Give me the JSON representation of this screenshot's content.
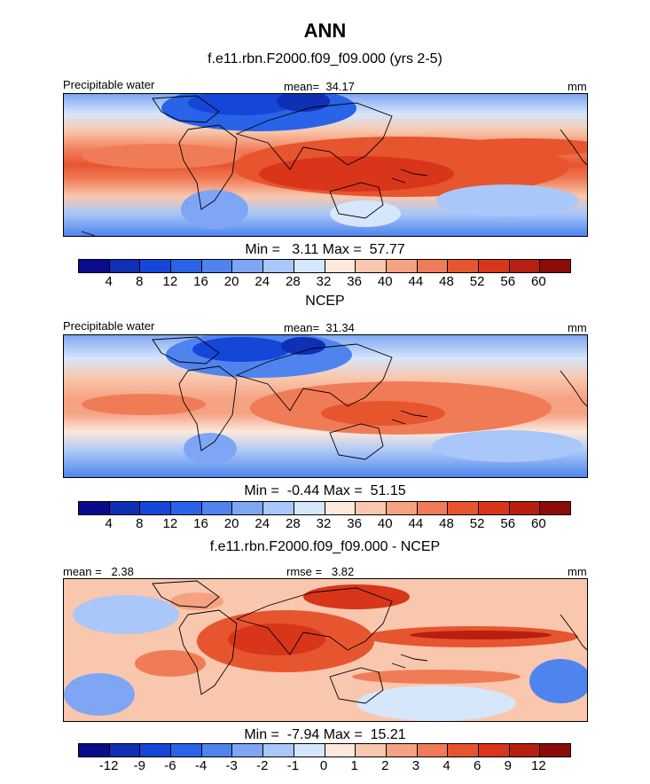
{
  "figure": {
    "title": "ANN",
    "subtitle": "f.e11.rbn.F2000.f09_f09.000 (yrs 2-5)"
  },
  "panels": [
    {
      "id": "model",
      "left_label": "Precipitable water",
      "center_label": "mean=  34.17",
      "units": "mm",
      "minmax": "Min =   3.11 Max =  57.77",
      "colorbar": {
        "colors": [
          "#0a0a8c",
          "#0f2fb4",
          "#1446d8",
          "#2863e8",
          "#4f84ee",
          "#7ea6f4",
          "#a9c7f8",
          "#d6e6fb",
          "#fde8dc",
          "#f9c7ad",
          "#f5a283",
          "#f07c57",
          "#e7552f",
          "#d8351b",
          "#b91f10",
          "#8b0c08"
        ],
        "ticks": [
          "4",
          "8",
          "12",
          "16",
          "20",
          "24",
          "28",
          "32",
          "36",
          "40",
          "44",
          "48",
          "52",
          "56",
          "60"
        ]
      }
    },
    {
      "id": "obs",
      "title": "NCEP",
      "left_label": "Precipitable water",
      "center_label": "mean=  31.34",
      "units": "mm",
      "minmax": "Min =  -0.44 Max =  51.15",
      "colorbar": {
        "colors": [
          "#0a0a8c",
          "#0f2fb4",
          "#1446d8",
          "#2863e8",
          "#4f84ee",
          "#7ea6f4",
          "#a9c7f8",
          "#d6e6fb",
          "#fde8dc",
          "#f9c7ad",
          "#f5a283",
          "#f07c57",
          "#e7552f",
          "#d8351b",
          "#b91f10",
          "#8b0c08"
        ],
        "ticks": [
          "4",
          "8",
          "12",
          "16",
          "20",
          "24",
          "28",
          "32",
          "36",
          "40",
          "44",
          "48",
          "52",
          "56",
          "60"
        ]
      }
    },
    {
      "id": "diff",
      "title": "f.e11.rbn.F2000.f09_f09.000 - NCEP",
      "left_label": "mean =   2.38",
      "center_label": "rmse =   3.82",
      "units": "mm",
      "minmax": "Min =  -7.94 Max =  15.21",
      "colorbar": {
        "colors": [
          "#0a0a8c",
          "#0f2fb4",
          "#1446d8",
          "#2863e8",
          "#4f84ee",
          "#7ea6f4",
          "#a9c7f8",
          "#d6e6fb",
          "#fde8dc",
          "#f9c7ad",
          "#f5a283",
          "#f07c57",
          "#e7552f",
          "#d8351b",
          "#b91f10",
          "#8b0c08"
        ],
        "ticks": [
          "-12",
          "-9",
          "-6",
          "-4",
          "-3",
          "-2",
          "-1",
          "0",
          "1",
          "2",
          "3",
          "4",
          "6",
          "9",
          "12"
        ]
      }
    }
  ]
}
